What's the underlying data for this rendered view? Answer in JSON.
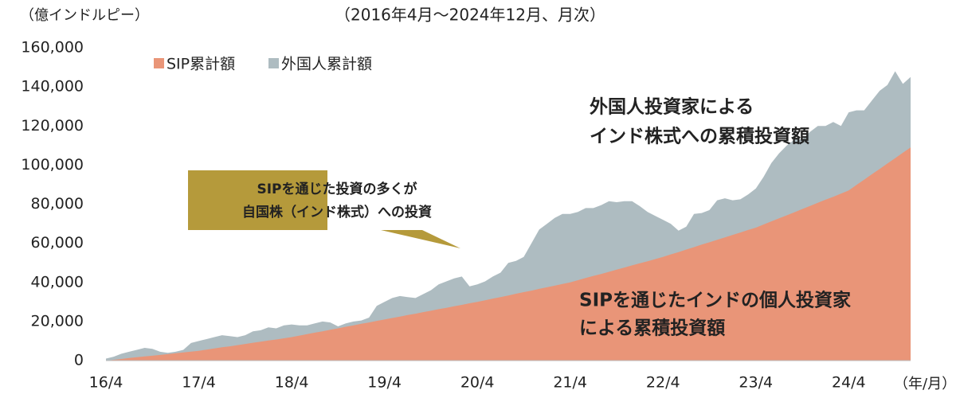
{
  "chart_data": {
    "type": "area",
    "subtitle": "（2016年4月～2024年12月、月次）",
    "y_axis_label": "（億インドルピー）",
    "x_axis_label": "（年/月）",
    "categories": [
      "16/4",
      null,
      null,
      null,
      null,
      null,
      null,
      null,
      null,
      null,
      null,
      null,
      "17/4",
      null,
      null,
      null,
      null,
      null,
      null,
      null,
      null,
      null,
      null,
      null,
      "18/4",
      null,
      null,
      null,
      null,
      null,
      null,
      null,
      null,
      null,
      null,
      null,
      "19/4",
      null,
      null,
      null,
      null,
      null,
      null,
      null,
      null,
      null,
      null,
      null,
      "20/4",
      null,
      null,
      null,
      null,
      null,
      null,
      null,
      null,
      null,
      null,
      null,
      "21/4",
      null,
      null,
      null,
      null,
      null,
      null,
      null,
      null,
      null,
      null,
      null,
      "22/4",
      null,
      null,
      null,
      null,
      null,
      null,
      null,
      null,
      null,
      null,
      null,
      "23/4",
      null,
      null,
      null,
      null,
      null,
      null,
      null,
      null,
      null,
      null,
      null,
      "24/4",
      null,
      null,
      null,
      null,
      null,
      null,
      null,
      null
    ],
    "series": [
      {
        "name": "外国人累計額",
        "color": "#aebcc1",
        "values": [
          1000,
          2000,
          3500,
          4500,
          5500,
          6500,
          6000,
          4500,
          4000,
          4500,
          5500,
          9000,
          10000,
          11000,
          12000,
          13000,
          12500,
          12000,
          13000,
          15000,
          15500,
          17000,
          16500,
          18000,
          18500,
          18000,
          18000,
          19000,
          20000,
          19500,
          17500,
          19000,
          20000,
          20500,
          22000,
          28000,
          30000,
          32000,
          33000,
          32500,
          32000,
          34000,
          36000,
          39000,
          40500,
          42000,
          43000,
          38000,
          39000,
          40500,
          43000,
          45000,
          50000,
          51000,
          53000,
          60000,
          67000,
          70000,
          73000,
          75000,
          75000,
          76000,
          78000,
          78000,
          79500,
          81500,
          81000,
          81500,
          81500,
          79000,
          76000,
          74000,
          72000,
          70000,
          66500,
          68500,
          75000,
          75500,
          77000,
          82000,
          83000,
          82000,
          82500,
          85000,
          88000,
          94000,
          101000,
          106000,
          110000,
          113000,
          113000,
          117000,
          120000,
          120000,
          122000,
          120000,
          127000,
          128000,
          128000,
          133000,
          138000,
          141000,
          148000,
          141500,
          145000
        ]
      },
      {
        "name": "SIP累計額",
        "color": "#e99578",
        "values": [
          0,
          400,
          800,
          1300,
          1700,
          2100,
          2500,
          2900,
          3300,
          3800,
          4200,
          4600,
          5000,
          5600,
          6200,
          6800,
          7300,
          7900,
          8500,
          9100,
          9700,
          10300,
          10800,
          11400,
          12000,
          12800,
          13500,
          14300,
          15000,
          15800,
          16500,
          17300,
          18000,
          18800,
          19500,
          20300,
          21000,
          21800,
          22500,
          23300,
          24000,
          24800,
          25500,
          26300,
          27000,
          27800,
          28500,
          29300,
          30000,
          30800,
          31700,
          32500,
          33300,
          34200,
          35000,
          35800,
          36700,
          37500,
          38300,
          39200,
          40000,
          41100,
          42200,
          43300,
          44300,
          45400,
          46500,
          47600,
          48700,
          49800,
          50800,
          51900,
          53000,
          54300,
          55500,
          56800,
          58000,
          59300,
          60500,
          61800,
          63000,
          64300,
          65500,
          66800,
          68000,
          69600,
          71200,
          72800,
          74300,
          75900,
          77500,
          79100,
          80700,
          82300,
          83800,
          85400,
          87000,
          89800,
          92500,
          95300,
          98000,
          100800,
          103500,
          106300,
          109000
        ]
      }
    ],
    "ylim": [
      0,
      160000
    ],
    "yticks": [
      0,
      {
        "value": 20000,
        "label": "20,000"
      },
      {
        "value": 40000,
        "label": "40,000"
      },
      {
        "value": 60000,
        "label": "60,000"
      },
      {
        "value": 80000,
        "label": "80,000"
      },
      {
        "value": 100000,
        "label": "100,000"
      },
      {
        "value": 120000,
        "label": "120,000"
      },
      {
        "value": 140000,
        "label": "140,000"
      },
      {
        "value": 160000,
        "label": "160,000"
      }
    ],
    "legend": "top-left",
    "annotations": {
      "foreign": [
        "外国人投資家による",
        "インド株式への累積投資額"
      ],
      "sip": [
        "SIPを通じたインドの個人投資家",
        "による累積投資額"
      ],
      "callout": [
        "SIPを通じた投資の多くが",
        "自国株（インド株式）への投資"
      ]
    }
  }
}
